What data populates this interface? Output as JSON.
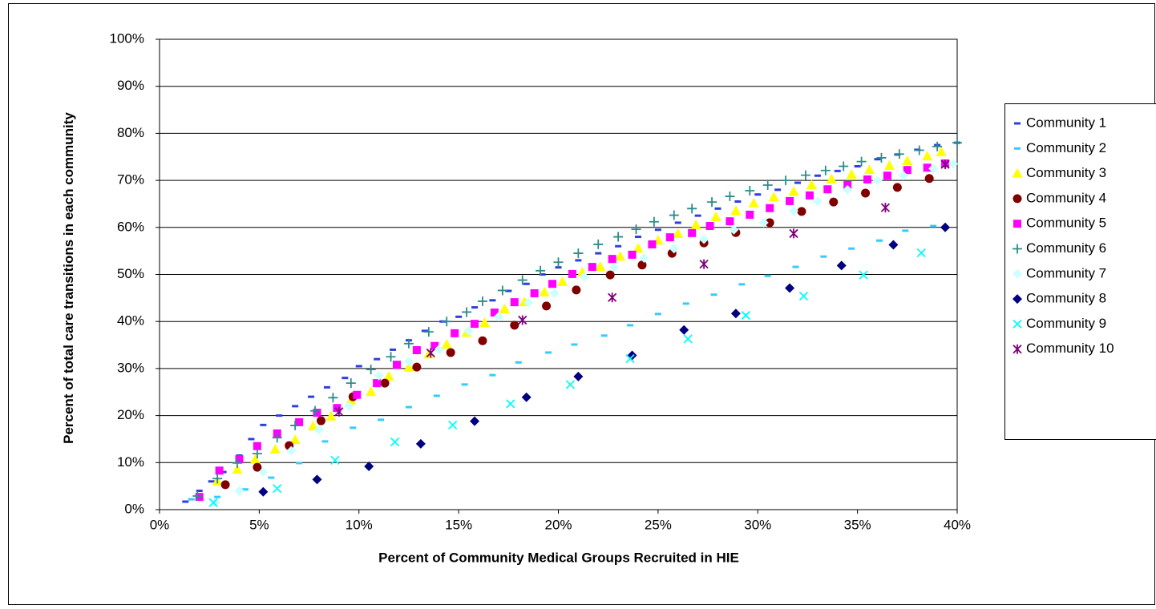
{
  "chart_data": {
    "type": "scatter",
    "x_label": "Percent of Community Medical Groups Recruited in HIE",
    "y_label": "Percent of total care transitions in each community",
    "xlim": [
      0,
      40
    ],
    "ylim": [
      0,
      100
    ],
    "xticks": [
      {
        "value": 0,
        "label": "0%"
      },
      {
        "value": 5,
        "label": "5%"
      },
      {
        "value": 10,
        "label": "10%"
      },
      {
        "value": 15,
        "label": "15%"
      },
      {
        "value": 20,
        "label": "20%"
      },
      {
        "value": 25,
        "label": "25%"
      },
      {
        "value": 30,
        "label": "30%"
      },
      {
        "value": 35,
        "label": "35%"
      },
      {
        "value": 40,
        "label": "40%"
      }
    ],
    "yticks": [
      {
        "value": 0,
        "label": "0%"
      },
      {
        "value": 10,
        "label": "10%"
      },
      {
        "value": 20,
        "label": "20%"
      },
      {
        "value": 30,
        "label": "30%"
      },
      {
        "value": 40,
        "label": "40%"
      },
      {
        "value": 50,
        "label": "50%"
      },
      {
        "value": 60,
        "label": "60%"
      },
      {
        "value": 70,
        "label": "70%"
      },
      {
        "value": 80,
        "label": "80%"
      },
      {
        "value": 90,
        "label": "90%"
      },
      {
        "value": 100,
        "label": "100%"
      }
    ],
    "grid": true,
    "legend": "right",
    "series": [
      {
        "name": "Community 1",
        "color": "#2f3fdd",
        "marker": "dash",
        "x": [
          1.3,
          2,
          2.6,
          3.2,
          4,
          4.6,
          5.2,
          6,
          6.8,
          7.6,
          8.4,
          9.3,
          10,
          10.9,
          11.7,
          12.5,
          13.3,
          14.2,
          15,
          15.8,
          16.7,
          17.5,
          18.4,
          19.2,
          20,
          21,
          22,
          23,
          24,
          25,
          26,
          27,
          28,
          29,
          30,
          31,
          32,
          33,
          34,
          35,
          36,
          37,
          38,
          39,
          40
        ],
        "values": [
          1.7,
          4,
          6,
          8,
          11.5,
          15,
          18,
          20,
          22,
          24,
          26,
          28,
          30.5,
          32,
          34,
          36,
          38,
          40,
          41,
          43,
          44.5,
          46.5,
          48,
          50,
          51.5,
          53,
          54.5,
          56,
          58,
          59.5,
          61,
          62.5,
          64,
          65.5,
          67,
          68,
          69.5,
          71,
          72,
          73,
          74.5,
          75.5,
          76.5,
          77.5,
          78
        ]
      },
      {
        "name": "Community 2",
        "color": "#33ccff",
        "marker": "dash",
        "x": [
          1.6,
          2.9,
          4.3,
          5.6,
          7,
          8.3,
          9.7,
          11.1,
          12.5,
          13.9,
          15.3,
          16.7,
          18,
          19.5,
          20.8,
          22.3,
          23.6,
          25,
          26.4,
          27.8,
          29.2,
          30.5,
          31.9,
          33.3,
          34.7,
          36.1,
          37.4,
          38.8
        ],
        "values": [
          2.2,
          2.7,
          4.3,
          6.8,
          9.9,
          14.5,
          17.4,
          19.1,
          21.8,
          24.2,
          26.6,
          28.6,
          31.3,
          33.4,
          35.1,
          37,
          39.2,
          41.6,
          43.8,
          45.7,
          47.9,
          49.7,
          51.6,
          53.8,
          55.5,
          57.2,
          59.3,
          60.3
        ]
      },
      {
        "name": "Community 3",
        "color": "#ffff00",
        "marker": "triangle",
        "x": [
          2.9,
          3.9,
          4.8,
          5.8,
          6.8,
          7.7,
          8.6,
          9.6,
          10.6,
          11.5,
          12.5,
          13.5,
          14.4,
          15.4,
          16.3,
          17.3,
          18.3,
          19.3,
          20.2,
          21.2,
          22.1,
          23.1,
          24,
          25,
          26,
          26.9,
          27.9,
          28.9,
          29.8,
          30.8,
          31.8,
          32.7,
          33.7,
          34.7,
          35.6,
          36.6,
          37.5,
          38.5,
          39.2
        ],
        "values": [
          6,
          8.5,
          10.6,
          12.8,
          14.8,
          17.7,
          19.8,
          23.2,
          25,
          28.3,
          30.2,
          33,
          35.1,
          37.6,
          39.7,
          42.6,
          44.1,
          46.2,
          48.4,
          50.4,
          51.6,
          53.8,
          55.5,
          57.2,
          58.6,
          60.5,
          62.2,
          63.5,
          65.1,
          66.4,
          67.6,
          69,
          70.2,
          71.2,
          72.2,
          73.1,
          74.1,
          75.1,
          76
        ]
      },
      {
        "name": "Community 4",
        "color": "#800000",
        "marker": "circle",
        "x": [
          3.3,
          4.9,
          6.5,
          8.1,
          9.7,
          11.3,
          12.9,
          14.6,
          16.2,
          17.8,
          19.4,
          20.9,
          22.6,
          24.2,
          25.7,
          27.3,
          28.9,
          30.6,
          32.2,
          33.8,
          35.4,
          37,
          38.6
        ],
        "values": [
          5.3,
          9,
          13.6,
          18.9,
          24,
          26.9,
          30.3,
          33.4,
          35.9,
          39.2,
          43.3,
          46.7,
          49.9,
          52,
          54.5,
          56.7,
          58.9,
          61,
          63.4,
          65.4,
          67.3,
          68.5,
          70.4
        ]
      },
      {
        "name": "Community 5",
        "color": "#ff00ff",
        "marker": "square",
        "x": [
          2,
          3,
          4,
          4.9,
          5.9,
          7,
          7.9,
          8.9,
          9.9,
          10.9,
          11.9,
          12.9,
          13.8,
          14.8,
          15.8,
          16.8,
          17.8,
          18.8,
          19.7,
          20.7,
          21.7,
          22.7,
          23.7,
          24.7,
          25.6,
          26.7,
          27.6,
          28.6,
          29.6,
          30.6,
          31.6,
          32.6,
          33.5,
          34.5,
          35.5,
          36.5,
          37.5,
          38.5,
          39.4
        ],
        "values": [
          2.7,
          8.3,
          10.7,
          13.5,
          16.2,
          18.6,
          20.6,
          21.6,
          24.4,
          26.9,
          30.8,
          33.9,
          34.8,
          37.5,
          39.5,
          41.9,
          44.1,
          46,
          48,
          50.1,
          51.6,
          53.3,
          54.2,
          56.4,
          57.9,
          58.8,
          60.3,
          61.3,
          62.7,
          64.1,
          65.6,
          66.8,
          68.1,
          69,
          70.2,
          71,
          72.2,
          72.7,
          73.6
        ]
      },
      {
        "name": "Community 6",
        "color": "#2e8b8b",
        "marker": "plus",
        "x": [
          1.9,
          2.9,
          3.9,
          4.9,
          5.9,
          6.8,
          7.8,
          8.7,
          9.6,
          10.6,
          11.6,
          12.5,
          13.5,
          14.4,
          15.4,
          16.2,
          17.2,
          18.2,
          19.1,
          20,
          21,
          22,
          23,
          23.9,
          24.8,
          25.8,
          26.7,
          27.7,
          28.6,
          29.6,
          30.5,
          31.4,
          32.4,
          33.4,
          34.3,
          35.2,
          36.2,
          37.1,
          38.1,
          39,
          40
        ],
        "values": [
          2.9,
          6.6,
          9.9,
          11.9,
          15.3,
          17.9,
          21,
          23.8,
          26.9,
          29.8,
          32.5,
          35.3,
          37.8,
          40,
          42,
          44.3,
          46.6,
          48.8,
          50.8,
          52.6,
          54.5,
          56.4,
          58,
          59.6,
          61.2,
          62.6,
          64,
          65.4,
          66.6,
          67.8,
          69,
          70,
          71.1,
          72.1,
          73,
          74,
          74.8,
          75.6,
          76.4,
          77.2,
          78
        ]
      },
      {
        "name": "Community 7",
        "color": "#ccffff",
        "marker": "diamond",
        "x": [
          2.8,
          4,
          5.2,
          6.6,
          8,
          9.5,
          11,
          12.5,
          14,
          15.5,
          17,
          18.5,
          19.8,
          21.3,
          22.8,
          24.3,
          25.8,
          27.3,
          28.8,
          30.3,
          31.8,
          33,
          34.5,
          36,
          37.3,
          38.8,
          39.8
        ],
        "values": [
          1.5,
          4,
          8,
          12.5,
          17,
          22,
          28.5,
          31.5,
          34,
          38,
          41,
          44,
          46,
          49.5,
          51.5,
          53.5,
          55.5,
          57.5,
          59.5,
          61,
          63.5,
          65.5,
          68,
          70,
          71,
          72.5,
          73.5
        ]
      },
      {
        "name": "Community 8",
        "color": "#000080",
        "marker": "diamond",
        "x": [
          5.2,
          7.9,
          10.5,
          13.1,
          15.8,
          18.4,
          21,
          23.7,
          26.3,
          28.9,
          31.6,
          34.2,
          36.8,
          39.4
        ],
        "values": [
          3.8,
          6.4,
          9.2,
          14,
          18.8,
          23.9,
          28.3,
          32.8,
          38.2,
          41.7,
          47.1,
          51.9,
          56.3,
          60
        ]
      },
      {
        "name": "Community 9",
        "color": "#00ffff",
        "marker": "x",
        "x": [
          2.7,
          5.9,
          8.8,
          11.8,
          14.7,
          17.6,
          20.6,
          23.6,
          26.5,
          29.4,
          32.3,
          35.3,
          38.2
        ],
        "values": [
          1.5,
          4.5,
          10.5,
          14.4,
          18,
          22.5,
          26.6,
          32.1,
          36.3,
          41.3,
          45.4,
          49.9,
          54.6
        ]
      },
      {
        "name": "Community 10",
        "color": "#800080",
        "marker": "asterisk",
        "x": [
          9,
          13.6,
          18.2,
          22.7,
          27.3,
          31.8,
          36.4,
          39.4
        ],
        "values": [
          20.8,
          33.3,
          40.3,
          45.1,
          52.2,
          58.7,
          64.2,
          73.4
        ]
      }
    ]
  }
}
